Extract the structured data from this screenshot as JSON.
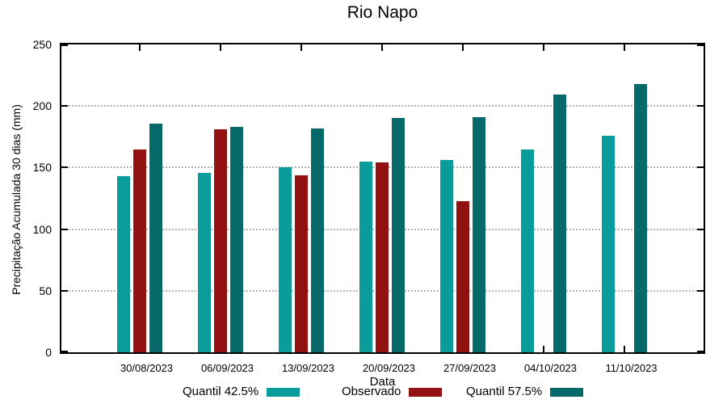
{
  "chart_data": {
    "type": "bar",
    "title": "Rio Napo",
    "xlabel": "Data",
    "ylabel": "Precipitação Acumulada 30 dias (mm)",
    "ylim": [
      0,
      250
    ],
    "yticks": [
      0,
      50,
      100,
      150,
      200,
      250
    ],
    "grid": "horizontal-dotted",
    "legend_position": "bottom",
    "categories": [
      "30/08/2023",
      "06/09/2023",
      "13/09/2023",
      "20/09/2023",
      "27/09/2023",
      "04/10/2023",
      "11/10/2023"
    ],
    "series": [
      {
        "name": "Quantil 42.5%",
        "color": "#0A9B9B",
        "values": [
          143,
          146,
          150,
          155,
          156,
          165,
          176
        ]
      },
      {
        "name": "Observado",
        "color": "#921212",
        "values": [
          165,
          181,
          144,
          154,
          123,
          null,
          null
        ]
      },
      {
        "name": "Quantil 57.5%",
        "color": "#076969",
        "values": [
          186,
          183,
          182,
          190,
          191,
          209,
          218
        ]
      }
    ]
  }
}
